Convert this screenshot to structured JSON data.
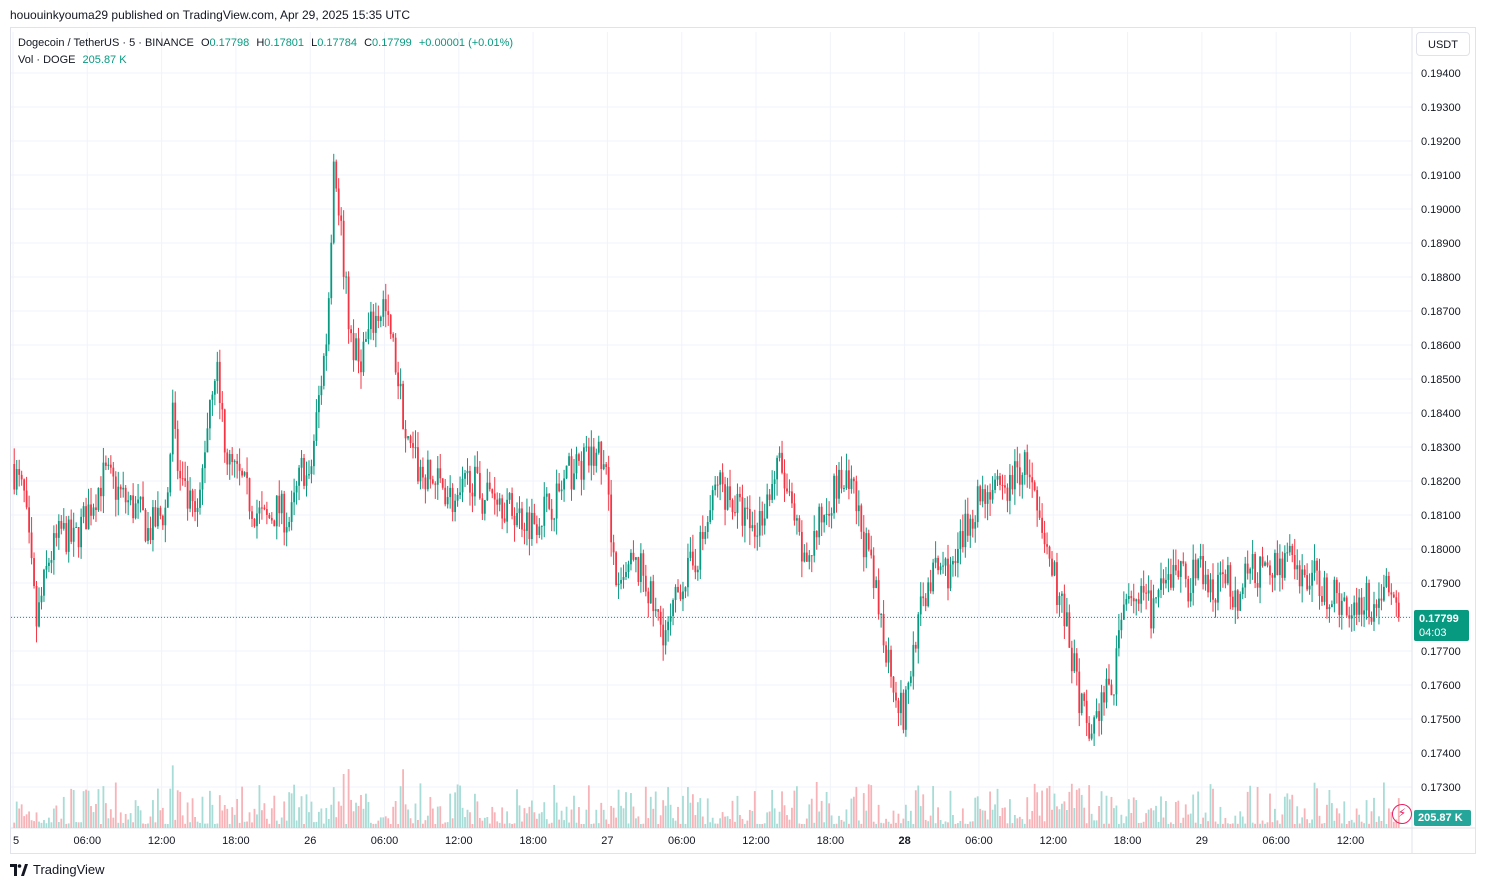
{
  "header": {
    "publisher": "hououinkyouma29 published on TradingView.com, Apr 29, 2025 15:35 UTC"
  },
  "legend": {
    "symbol": "Dogecoin / TetherUS · 5 · BINANCE",
    "open_label": "O",
    "open": "0.17798",
    "high_label": "H",
    "high": "0.17801",
    "low_label": "L",
    "low": "0.17784",
    "close_label": "C",
    "close": "0.17799",
    "change": "+0.00001 (+0.01%)",
    "vol_label": "Vol · DOGE",
    "vol_value": "205.87 K"
  },
  "currency": "USDT",
  "last_price": {
    "price": "0.17799",
    "countdown": "04:03"
  },
  "volume_badge": "205.87 K",
  "footer": {
    "brand": "TradingView"
  },
  "colors": {
    "up": "#089981",
    "down": "#f23645",
    "vol_up": "#a8dcd6",
    "vol_down": "#f7b3b7",
    "grid": "#f0f3fa"
  },
  "chart_data": {
    "type": "candlestick",
    "title": "Dogecoin / TetherUS · 5 · BINANCE",
    "ylim": [
      0.1722,
      0.195
    ],
    "y_ticks": [
      0.194,
      0.193,
      0.192,
      0.191,
      0.19,
      0.189,
      0.188,
      0.187,
      0.186,
      0.185,
      0.184,
      0.183,
      0.182,
      0.181,
      0.18,
      0.179,
      0.178,
      0.177,
      0.176,
      0.175,
      0.174,
      0.173
    ],
    "y_tick_labels": [
      "0.19400",
      "0.19300",
      "0.19200",
      "0.19100",
      "0.19000",
      "0.18900",
      "0.18800",
      "0.18700",
      "0.18600",
      "0.18500",
      "0.18400",
      "0.18300",
      "0.18200",
      "0.18100",
      "0.18000",
      "0.17900",
      "0.17800",
      "0.17700",
      "0.17600",
      "0.17500",
      "0.17400",
      "0.17300"
    ],
    "x_range_hours": [
      0,
      112.0
    ],
    "x_ticks": [
      {
        "label": "5",
        "h": 0,
        "bold": false
      },
      {
        "label": "06:00",
        "h": 6,
        "bold": false
      },
      {
        "label": "12:00",
        "h": 12,
        "bold": false
      },
      {
        "label": "18:00",
        "h": 18,
        "bold": false
      },
      {
        "label": "26",
        "h": 24,
        "bold": false
      },
      {
        "label": "06:00",
        "h": 30,
        "bold": false
      },
      {
        "label": "12:00",
        "h": 36,
        "bold": false
      },
      {
        "label": "18:00",
        "h": 42,
        "bold": false
      },
      {
        "label": "27",
        "h": 48,
        "bold": false
      },
      {
        "label": "06:00",
        "h": 54,
        "bold": false
      },
      {
        "label": "12:00",
        "h": 60,
        "bold": false
      },
      {
        "label": "18:00",
        "h": 66,
        "bold": false
      },
      {
        "label": "28",
        "h": 72,
        "bold": true
      },
      {
        "label": "06:00",
        "h": 78,
        "bold": false
      },
      {
        "label": "12:00",
        "h": 84,
        "bold": false
      },
      {
        "label": "18:00",
        "h": 90,
        "bold": false
      },
      {
        "label": "29",
        "h": 96,
        "bold": false
      },
      {
        "label": "06:00",
        "h": 102,
        "bold": false
      },
      {
        "label": "12:00",
        "h": 108,
        "bold": false
      }
    ],
    "last_price": 0.17799,
    "path_hours": [
      0.0,
      1.0,
      2.0,
      3.0,
      4.0,
      5.0,
      6.0,
      7.5,
      9.0,
      10.5,
      11.0,
      12.5,
      13.0,
      13.5,
      14.0,
      15.0,
      16.0,
      16.5,
      17.0,
      17.5,
      18.5,
      19.5,
      20.5,
      21.5,
      22.5,
      23.5,
      24.0,
      24.5,
      25.0,
      25.5,
      26.0,
      26.5,
      27.0,
      27.5,
      28.0,
      29.0,
      30.0,
      31.0,
      32.0,
      33.0,
      34.0,
      35.0,
      36.0,
      37.0,
      38.0,
      39.0,
      40.0,
      41.0,
      42.0,
      43.0,
      44.0,
      45.0,
      46.0,
      47.5,
      48.0,
      49.0,
      50.0,
      51.0,
      52.0,
      53.0,
      54.0,
      55.0,
      56.0,
      57.0,
      58.0,
      59.0,
      60.0,
      61.0,
      62.0,
      63.0,
      64.0,
      65.0,
      66.0,
      67.0,
      68.0,
      69.0,
      70.0,
      71.0,
      72.0,
      73.0,
      74.0,
      75.0,
      76.0,
      77.0,
      78.0,
      79.0,
      80.0,
      81.0,
      82.0,
      83.0,
      84.0,
      85.0,
      86.0,
      87.0,
      88.0,
      89.0,
      90.0,
      91.0,
      92.0,
      93.0,
      94.0,
      95.0,
      96.0,
      97.0,
      98.0,
      99.0,
      100.0,
      101.0,
      102.0,
      103.0,
      104.0,
      105.0,
      106.0,
      107.0,
      108.0,
      109.0,
      110.0,
      111.0,
      112.0
    ],
    "path_prices": [
      0.1825,
      0.1815,
      0.1778,
      0.1797,
      0.1805,
      0.1802,
      0.181,
      0.1822,
      0.1815,
      0.181,
      0.1805,
      0.1812,
      0.184,
      0.182,
      0.1815,
      0.1808,
      0.1845,
      0.1855,
      0.1838,
      0.1825,
      0.182,
      0.1812,
      0.1808,
      0.1812,
      0.1808,
      0.1825,
      0.1818,
      0.1835,
      0.185,
      0.1865,
      0.1915,
      0.1898,
      0.1875,
      0.186,
      0.1855,
      0.1865,
      0.1872,
      0.1855,
      0.183,
      0.1822,
      0.182,
      0.1818,
      0.1812,
      0.1822,
      0.1815,
      0.1818,
      0.1812,
      0.181,
      0.1808,
      0.1812,
      0.1815,
      0.1822,
      0.1825,
      0.1828,
      0.182,
      0.1785,
      0.1795,
      0.1793,
      0.178,
      0.1775,
      0.179,
      0.1795,
      0.1805,
      0.182,
      0.1815,
      0.181,
      0.1805,
      0.1815,
      0.1825,
      0.181,
      0.1795,
      0.1805,
      0.1815,
      0.182,
      0.1815,
      0.18,
      0.1782,
      0.1765,
      0.175,
      0.1775,
      0.179,
      0.1795,
      0.1793,
      0.1805,
      0.1815,
      0.1818,
      0.1815,
      0.1822,
      0.1825,
      0.1805,
      0.1795,
      0.178,
      0.176,
      0.1745,
      0.1755,
      0.176,
      0.179,
      0.1785,
      0.1782,
      0.1787,
      0.1795,
      0.179,
      0.1795,
      0.1785,
      0.1793,
      0.1785,
      0.1795,
      0.1792,
      0.1795,
      0.1798,
      0.179,
      0.1793,
      0.1788,
      0.1785,
      0.1782,
      0.1786,
      0.1783,
      0.179,
      0.178
    ]
  }
}
